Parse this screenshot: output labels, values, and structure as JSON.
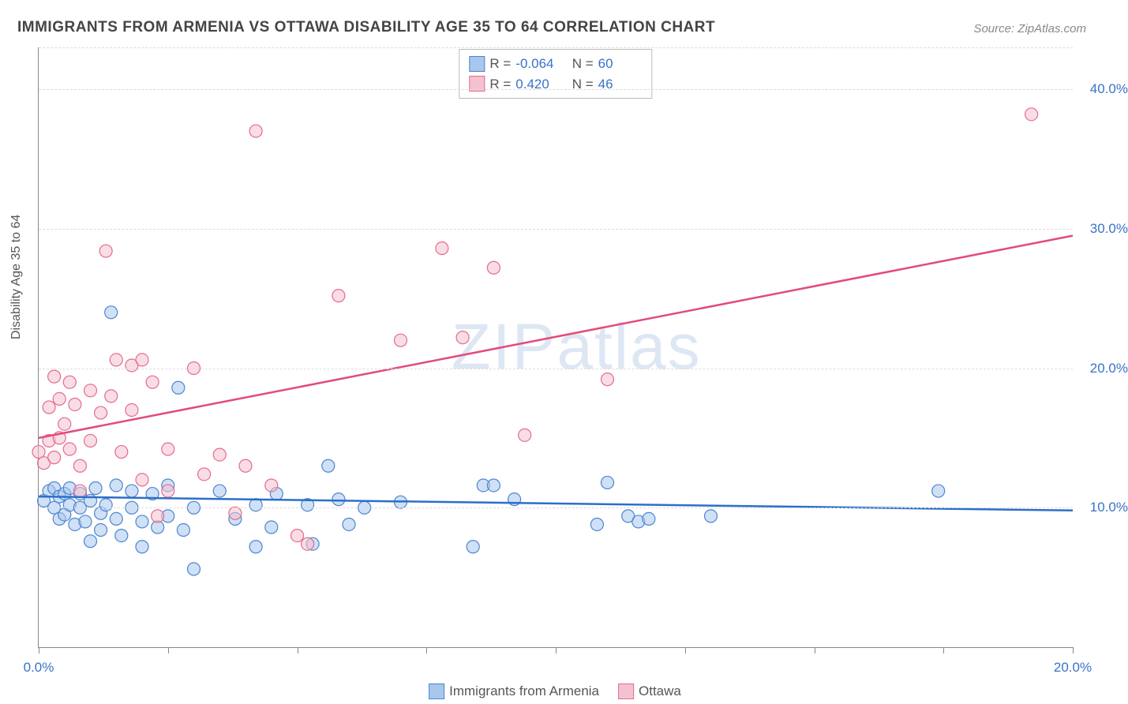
{
  "title": "IMMIGRANTS FROM ARMENIA VS OTTAWA DISABILITY AGE 35 TO 64 CORRELATION CHART",
  "source": "Source: ZipAtlas.com",
  "ylabel": "Disability Age 35 to 64",
  "watermark_a": "ZIP",
  "watermark_b": "atlas",
  "chart": {
    "type": "scatter",
    "xlim": [
      0,
      20
    ],
    "ylim": [
      0,
      43
    ],
    "x_ticks": [
      0,
      2.5,
      5,
      7.5,
      10,
      12.5,
      15,
      17.5,
      20
    ],
    "x_tick_labels": {
      "0": "0.0%",
      "20": "20.0%"
    },
    "y_gridlines": [
      10,
      20,
      30,
      40,
      43
    ],
    "y_tick_labels": {
      "10": "10.0%",
      "20": "20.0%",
      "30": "30.0%",
      "40": "40.0%"
    },
    "background_color": "#ffffff",
    "grid_color": "#dddddd",
    "axis_color": "#888888",
    "marker_radius": 8,
    "marker_opacity": 0.55,
    "series": [
      {
        "name": "Immigrants from Armenia",
        "color_fill": "#a9c6ec",
        "color_stroke": "#4b86d1",
        "r": "-0.064",
        "n": "60",
        "trend": {
          "x1": 0,
          "y1": 10.8,
          "x2": 20,
          "y2": 9.8,
          "color": "#2b6fc8",
          "width": 2.5
        },
        "points": [
          [
            0.1,
            10.5
          ],
          [
            0.2,
            11.2
          ],
          [
            0.3,
            10.0
          ],
          [
            0.3,
            11.4
          ],
          [
            0.4,
            9.2
          ],
          [
            0.4,
            10.8
          ],
          [
            0.5,
            11.0
          ],
          [
            0.5,
            9.5
          ],
          [
            0.6,
            10.2
          ],
          [
            0.6,
            11.4
          ],
          [
            0.7,
            8.8
          ],
          [
            0.8,
            10.0
          ],
          [
            0.8,
            11.0
          ],
          [
            0.9,
            9.0
          ],
          [
            1.0,
            10.5
          ],
          [
            1.0,
            7.6
          ],
          [
            1.1,
            11.4
          ],
          [
            1.2,
            9.6
          ],
          [
            1.2,
            8.4
          ],
          [
            1.3,
            10.2
          ],
          [
            1.4,
            24.0
          ],
          [
            1.5,
            9.2
          ],
          [
            1.5,
            11.6
          ],
          [
            1.6,
            8.0
          ],
          [
            1.8,
            10.0
          ],
          [
            1.8,
            11.2
          ],
          [
            2.0,
            9.0
          ],
          [
            2.0,
            7.2
          ],
          [
            2.2,
            11.0
          ],
          [
            2.3,
            8.6
          ],
          [
            2.5,
            9.4
          ],
          [
            2.5,
            11.6
          ],
          [
            2.7,
            18.6
          ],
          [
            2.8,
            8.4
          ],
          [
            3.0,
            10.0
          ],
          [
            3.0,
            5.6
          ],
          [
            3.5,
            11.2
          ],
          [
            3.8,
            9.2
          ],
          [
            4.2,
            10.2
          ],
          [
            4.2,
            7.2
          ],
          [
            4.5,
            8.6
          ],
          [
            4.6,
            11.0
          ],
          [
            5.2,
            10.2
          ],
          [
            5.3,
            7.4
          ],
          [
            5.6,
            13.0
          ],
          [
            5.8,
            10.6
          ],
          [
            6.3,
            10.0
          ],
          [
            7.0,
            10.4
          ],
          [
            8.4,
            7.2
          ],
          [
            8.6,
            11.6
          ],
          [
            8.8,
            11.6
          ],
          [
            10.8,
            8.8
          ],
          [
            11.0,
            11.8
          ],
          [
            11.4,
            9.4
          ],
          [
            11.6,
            9.0
          ],
          [
            11.8,
            9.2
          ],
          [
            13.0,
            9.4
          ],
          [
            17.4,
            11.2
          ],
          [
            9.2,
            10.6
          ],
          [
            6.0,
            8.8
          ]
        ]
      },
      {
        "name": "Ottawa",
        "color_fill": "#f4c1cf",
        "color_stroke": "#e56b8f",
        "r": "0.420",
        "n": "46",
        "trend": {
          "x1": 0,
          "y1": 15.0,
          "x2": 20,
          "y2": 29.5,
          "color": "#e24b7a",
          "width": 2.5
        },
        "points": [
          [
            0.0,
            14.0
          ],
          [
            0.1,
            13.2
          ],
          [
            0.2,
            14.8
          ],
          [
            0.2,
            17.2
          ],
          [
            0.3,
            19.4
          ],
          [
            0.3,
            13.6
          ],
          [
            0.4,
            17.8
          ],
          [
            0.4,
            15.0
          ],
          [
            0.5,
            16.0
          ],
          [
            0.6,
            14.2
          ],
          [
            0.6,
            19.0
          ],
          [
            0.7,
            17.4
          ],
          [
            0.8,
            11.2
          ],
          [
            0.8,
            13.0
          ],
          [
            1.0,
            14.8
          ],
          [
            1.0,
            18.4
          ],
          [
            1.2,
            16.8
          ],
          [
            1.3,
            28.4
          ],
          [
            1.4,
            18.0
          ],
          [
            1.5,
            20.6
          ],
          [
            1.6,
            14.0
          ],
          [
            1.8,
            20.2
          ],
          [
            1.8,
            17.0
          ],
          [
            2.0,
            12.0
          ],
          [
            2.0,
            20.6
          ],
          [
            2.2,
            19.0
          ],
          [
            2.3,
            9.4
          ],
          [
            2.5,
            14.2
          ],
          [
            2.5,
            11.2
          ],
          [
            3.0,
            20.0
          ],
          [
            3.2,
            12.4
          ],
          [
            3.5,
            13.8
          ],
          [
            3.8,
            9.6
          ],
          [
            4.0,
            13.0
          ],
          [
            4.2,
            37.0
          ],
          [
            4.5,
            11.6
          ],
          [
            5.0,
            8.0
          ],
          [
            5.2,
            7.4
          ],
          [
            5.8,
            25.2
          ],
          [
            7.0,
            22.0
          ],
          [
            7.8,
            28.6
          ],
          [
            8.2,
            22.2
          ],
          [
            8.8,
            27.2
          ],
          [
            9.4,
            15.2
          ],
          [
            11.0,
            19.2
          ],
          [
            19.2,
            38.2
          ]
        ]
      }
    ]
  },
  "legend_top": [
    {
      "swatch_fill": "#a9c6ec",
      "swatch_stroke": "#4b86d1",
      "r": "-0.064",
      "n": "60"
    },
    {
      "swatch_fill": "#f4c1cf",
      "swatch_stroke": "#e56b8f",
      "r": "0.420",
      "n": "46"
    }
  ],
  "legend_bottom": [
    {
      "swatch_fill": "#a9c6ec",
      "swatch_stroke": "#4b86d1",
      "label": "Immigrants from Armenia"
    },
    {
      "swatch_fill": "#f4c1cf",
      "swatch_stroke": "#e56b8f",
      "label": "Ottawa"
    }
  ]
}
